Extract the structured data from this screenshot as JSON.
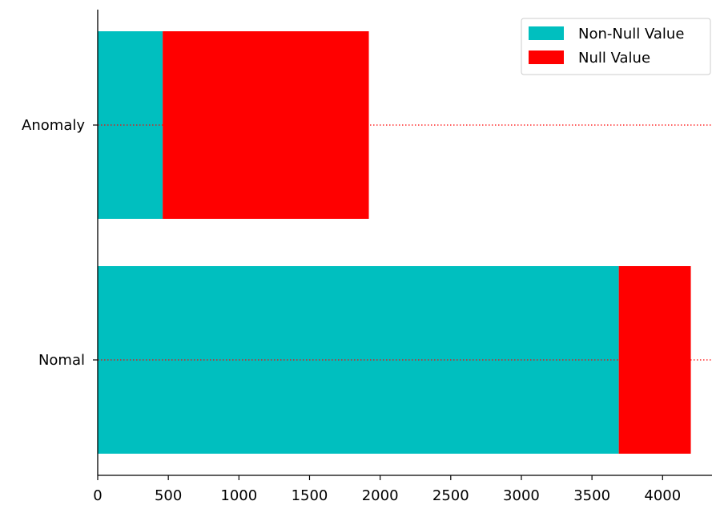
{
  "chart_data": {
    "type": "bar",
    "orientation": "horizontal",
    "stacked": true,
    "categories": [
      "Anomaly",
      "Nomal"
    ],
    "series": [
      {
        "name": "Non-Null Value",
        "values": [
          460,
          3690
        ],
        "color": "#00bfbf"
      },
      {
        "name": "Null Value",
        "values": [
          1460,
          510
        ],
        "color": "#ff0000"
      }
    ],
    "xlim": [
      0,
      4350
    ],
    "xticks": [
      0,
      500,
      1000,
      1500,
      2000,
      2500,
      3000,
      3500,
      4000
    ],
    "reference_line_color": "#ff0000",
    "legend_position": "top-right",
    "grid": false,
    "title": "",
    "xlabel": "",
    "ylabel": ""
  }
}
